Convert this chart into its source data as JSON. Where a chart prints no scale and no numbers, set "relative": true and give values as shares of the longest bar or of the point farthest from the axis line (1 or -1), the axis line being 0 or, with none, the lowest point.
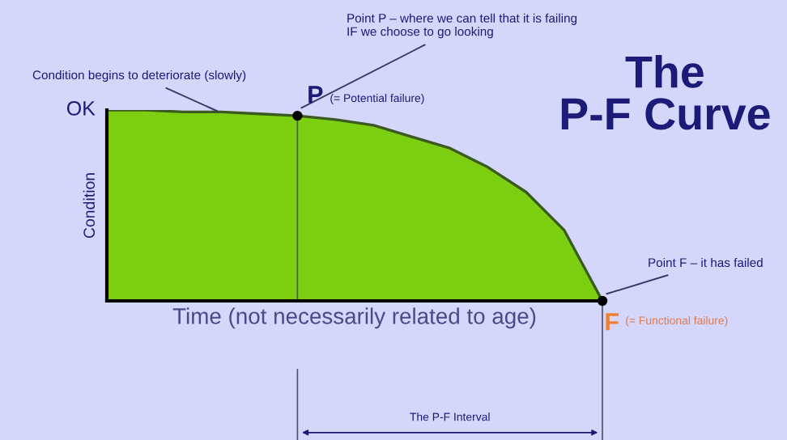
{
  "chart_data": {
    "type": "area",
    "title": "The\nP-F Curve",
    "xlabel": "Time (not necessarily related to age)",
    "ylabel": "Condition",
    "relative": true,
    "categories": [
      null,
      null,
      null,
      null,
      null,
      null,
      null,
      null,
      null,
      null,
      null,
      null,
      null,
      null
    ],
    "series": [
      {
        "color": "#7ccf10",
        "values": [
          1.0,
          1.0,
          0.99,
          0.99,
          0.98,
          0.97,
          0.95,
          0.92,
          0.86,
          0.8,
          0.7,
          0.57,
          0.37,
          0
        ]
      }
    ],
    "annotations": [
      "OK",
      "Condition begins to deteriorate (slowly)",
      "Point P – where we can tell that it is failing\nIF we choose to go looking",
      {
        "text": "P",
        "y": 0.97
      },
      "(= Potential failure)",
      "Point F – it has failed",
      {
        "text": "F",
        "y": 0
      },
      "(= Functional failure)",
      "The P-F Interval"
    ],
    "legend": false
  }
}
